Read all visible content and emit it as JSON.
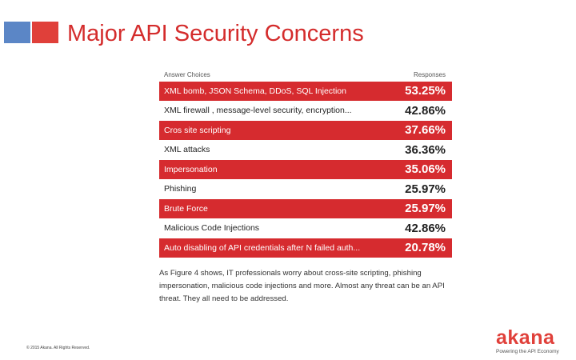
{
  "slide": {
    "title": "Major API Security Concerns",
    "copyright": "© 2015 Akana. All Rights Reserved.",
    "brand_colors": {
      "red": "#d62b2f",
      "blue": "#5b86c6"
    }
  },
  "survey": {
    "header_choices": "Answer Choices",
    "header_responses": "Responses",
    "rows": [
      {
        "label": "XML bomb, JSON Schema, DDoS, SQL Injection",
        "value": "53.25%",
        "highlight": true
      },
      {
        "label": "XML firewall , message-level security, encryption...",
        "value": "42.86%",
        "highlight": false
      },
      {
        "label": "Cros site scripting",
        "value": "37.66%",
        "highlight": true
      },
      {
        "label": "XML attacks",
        "value": "36.36%",
        "highlight": false
      },
      {
        "label": "Impersonation",
        "value": "35.06%",
        "highlight": true
      },
      {
        "label": "Phishing",
        "value": "25.97%",
        "highlight": false
      },
      {
        "label": "Brute Force",
        "value": "25.97%",
        "highlight": true
      },
      {
        "label": "Malicious Code Injections",
        "value": "42.86%",
        "highlight": false
      },
      {
        "label": "Auto disabling of API credentials after N failed auth...",
        "value": "20.78%",
        "highlight": true
      }
    ],
    "caption": "As Figure 4 shows, IT professionals worry about cross-site scripting, phishing impersonation, malicious code injections and more. Almost any threat can be an API threat. They all need to be addressed."
  },
  "brand": {
    "name": "akana",
    "tagline": "Powering the API Economy"
  }
}
